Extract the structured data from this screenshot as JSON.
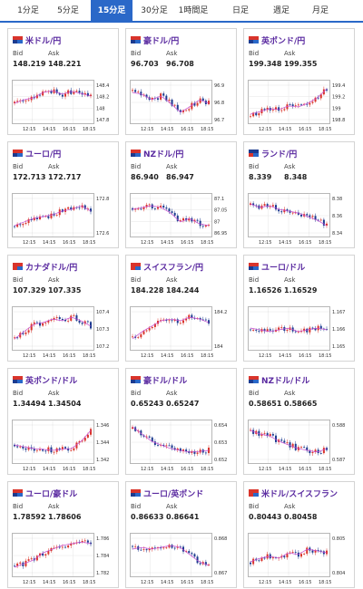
{
  "tabs": [
    "1分足",
    "5分足",
    "15分足",
    "30分足",
    "1時間足",
    "日足",
    "週足",
    "月足"
  ],
  "active_tab": 2,
  "labels": {
    "bid": "Bid",
    "ask": "Ask"
  },
  "time_labels": [
    "12:15",
    "14:15",
    "16:15",
    "18:15"
  ],
  "colors": {
    "up": "#d9342b",
    "down": "#1c3b8f",
    "ma": "#c54ad0",
    "tab_active": "#2a68c8",
    "pair": "#5a2aa0"
  },
  "cards": [
    {
      "pair": "米ドル/円",
      "flag": [
        "#1c3b8f",
        "#d9342b"
      ],
      "bid": "148.219",
      "ask": "148.221",
      "ticks": [
        "148.4",
        "148.2",
        "148",
        "147.8"
      ],
      "trend": [
        0.55,
        0.45,
        0.4,
        0.25,
        0.2,
        0.3,
        0.22,
        0.28,
        0.35
      ]
    },
    {
      "pair": "豪ドル/円",
      "flag": [
        "#1c3b8f",
        "#d9342b"
      ],
      "bid": "96.703",
      "ask": "96.708",
      "ticks": [
        "96.9",
        "96.8",
        "96.7"
      ],
      "trend": [
        0.25,
        0.3,
        0.45,
        0.35,
        0.55,
        0.8,
        0.65,
        0.45,
        0.55
      ]
    },
    {
      "pair": "英ポンド/円",
      "flag": [
        "#1c3b8f",
        "#d9342b"
      ],
      "bid": "199.348",
      "ask": "199.355",
      "ticks": [
        "199.4",
        "199.2",
        "199",
        "198.8"
      ],
      "trend": [
        0.85,
        0.78,
        0.7,
        0.72,
        0.62,
        0.65,
        0.55,
        0.4,
        0.15
      ]
    },
    {
      "pair": "ユーロ/円",
      "flag": [
        "#1c3b8f",
        "#d9342b"
      ],
      "bid": "172.713",
      "ask": "172.717",
      "ticks": [
        "172.8",
        "172.6"
      ],
      "trend": [
        0.8,
        0.7,
        0.6,
        0.55,
        0.5,
        0.4,
        0.35,
        0.25,
        0.4
      ]
    },
    {
      "pair": "NZドル/円",
      "flag": [
        "#1c3b8f",
        "#d9342b"
      ],
      "bid": "86.940",
      "ask": "86.947",
      "ticks": [
        "87.1",
        "87.05",
        "87",
        "86.95"
      ],
      "trend": [
        0.35,
        0.3,
        0.25,
        0.3,
        0.45,
        0.7,
        0.6,
        0.75,
        0.8
      ]
    },
    {
      "pair": "ランド/円",
      "flag": [
        "#d9342b",
        "#1c3b8f"
      ],
      "bid": "8.339",
      "ask": "8.348",
      "ticks": [
        "8.38",
        "8.36",
        "8.34"
      ],
      "trend": [
        0.2,
        0.3,
        0.25,
        0.35,
        0.4,
        0.45,
        0.55,
        0.65,
        0.8
      ]
    },
    {
      "pair": "カナダドル/円",
      "flag": [
        "#d9342b",
        "#d9342b"
      ],
      "bid": "107.329",
      "ask": "107.335",
      "ticks": [
        "107.4",
        "107.3",
        "107.2"
      ],
      "trend": [
        0.8,
        0.6,
        0.4,
        0.35,
        0.25,
        0.3,
        0.2,
        0.3,
        0.45
      ]
    },
    {
      "pair": "スイスフラン/円",
      "flag": [
        "#d9342b",
        "#d9342b"
      ],
      "bid": "184.228",
      "ask": "184.244",
      "ticks": [
        "184.2",
        "184"
      ],
      "trend": [
        0.8,
        0.6,
        0.45,
        0.3,
        0.25,
        0.3,
        0.2,
        0.25,
        0.35
      ]
    },
    {
      "pair": "ユーロ/ドル",
      "flag": [
        "#1c3b8f",
        "#d9342b"
      ],
      "bid": "1.16526",
      "ask": "1.16529",
      "ticks": [
        "1.167",
        "1.166",
        "1.165"
      ],
      "trend": [
        0.5,
        0.55,
        0.6,
        0.55,
        0.5,
        0.6,
        0.55,
        0.5,
        0.55
      ]
    },
    {
      "pair": "英ポンド/ドル",
      "flag": [
        "#1c3b8f",
        "#d9342b"
      ],
      "bid": "1.34494",
      "ask": "1.34504",
      "ticks": [
        "1.346",
        "1.344",
        "1.342"
      ],
      "trend": [
        0.6,
        0.65,
        0.7,
        0.72,
        0.75,
        0.72,
        0.7,
        0.5,
        0.2
      ]
    },
    {
      "pair": "豪ドル/ドル",
      "flag": [
        "#1c3b8f",
        "#d9342b"
      ],
      "bid": "0.65243",
      "ask": "0.65247",
      "ticks": [
        "0.654",
        "0.653",
        "0.652"
      ],
      "trend": [
        0.1,
        0.3,
        0.5,
        0.6,
        0.7,
        0.75,
        0.8,
        0.78,
        0.75
      ]
    },
    {
      "pair": "NZドル/ドル",
      "flag": [
        "#1c3b8f",
        "#d9342b"
      ],
      "bid": "0.58651",
      "ask": "0.58665",
      "ticks": [
        "0.588",
        "0.587"
      ],
      "trend": [
        0.2,
        0.3,
        0.35,
        0.5,
        0.6,
        0.7,
        0.75,
        0.8,
        0.7
      ]
    },
    {
      "pair": "ユーロ/豪ドル",
      "flag": [
        "#1c3b8f",
        "#d9342b"
      ],
      "bid": "1.78592",
      "ask": "1.78606",
      "ticks": [
        "1.786",
        "1.784",
        "1.782"
      ],
      "trend": [
        0.85,
        0.75,
        0.65,
        0.45,
        0.35,
        0.25,
        0.2,
        0.15,
        0.2
      ]
    },
    {
      "pair": "ユーロ/英ポンド",
      "flag": [
        "#1c3b8f",
        "#d9342b"
      ],
      "bid": "0.86633",
      "ask": "0.86641",
      "ticks": [
        "0.868",
        "0.867"
      ],
      "trend": [
        0.35,
        0.3,
        0.35,
        0.3,
        0.25,
        0.3,
        0.5,
        0.7,
        0.8
      ]
    },
    {
      "pair": "米ドル/スイスフラン",
      "flag": [
        "#d9342b",
        "#d9342b"
      ],
      "bid": "0.80443",
      "ask": "0.80458",
      "ticks": [
        "0.805",
        "0.804"
      ],
      "trend": [
        0.7,
        0.6,
        0.55,
        0.6,
        0.45,
        0.5,
        0.35,
        0.4,
        0.45
      ]
    }
  ]
}
